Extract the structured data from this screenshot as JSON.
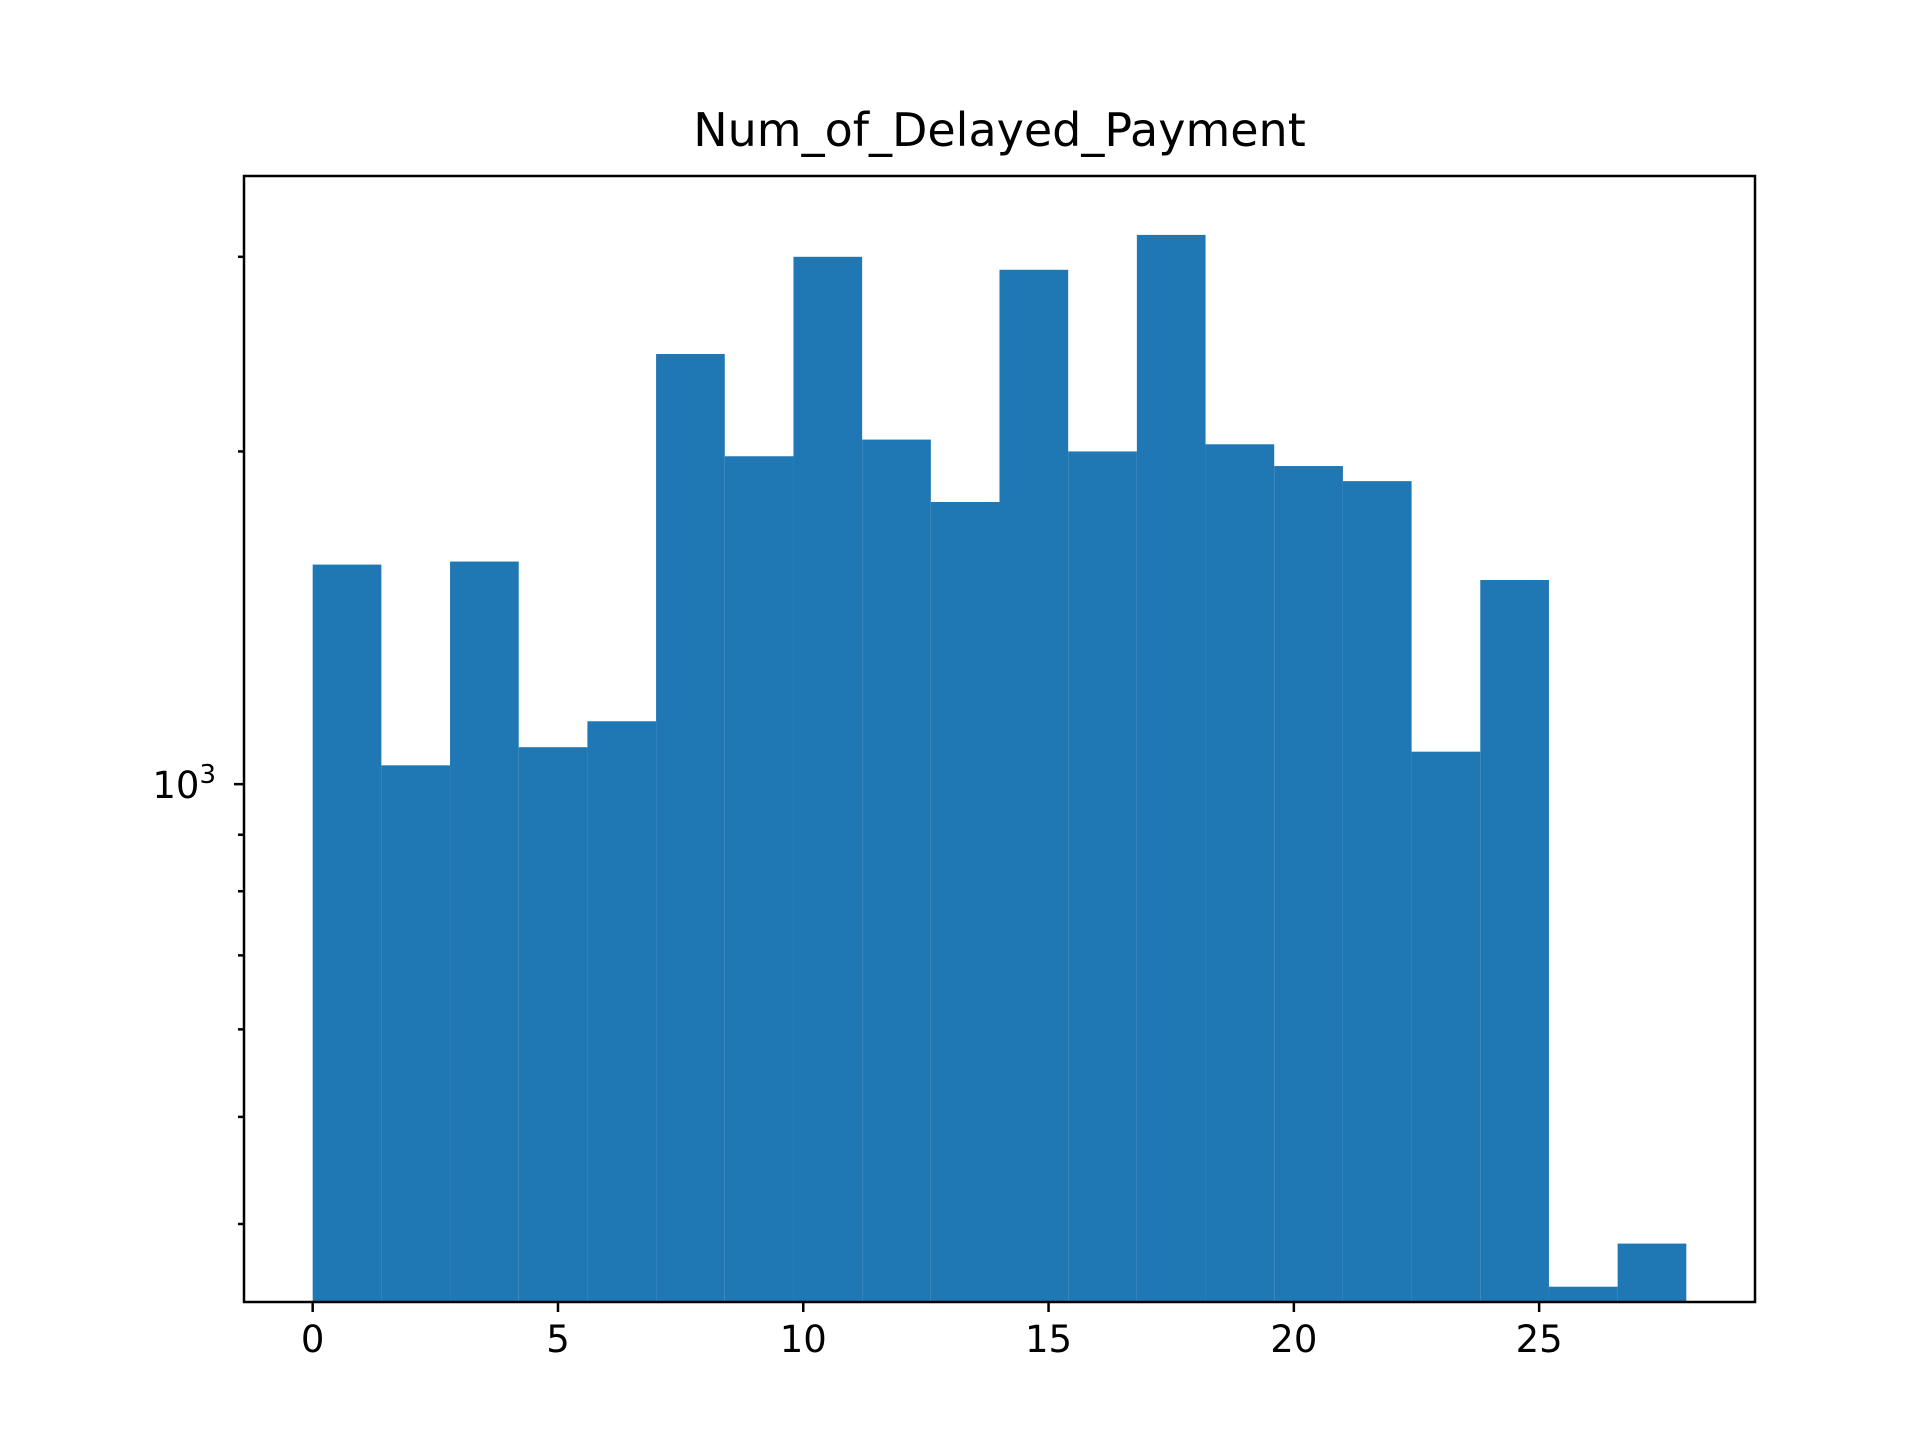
{
  "chart_data": {
    "type": "bar",
    "title": "Num_of_Delayed_Payment",
    "xlabel": "",
    "ylabel": "",
    "y_scale": "log",
    "bin_width": 1.4,
    "bin_edges": [
      0,
      1.4,
      2.8,
      4.2,
      5.6,
      7.0,
      8.4,
      9.8,
      11.2,
      12.6,
      14.0,
      15.4,
      16.8,
      18.2,
      19.6,
      21.0,
      22.4,
      23.8,
      25.2,
      26.6,
      28.0
    ],
    "values": [
      1580,
      1040,
      1590,
      1080,
      1140,
      2450,
      1980,
      3000,
      2050,
      1800,
      2920,
      2000,
      3140,
      2030,
      1940,
      1880,
      1070,
      1530,
      351,
      384
    ],
    "xlim": [
      -1.4,
      29.4
    ],
    "ylim": [
      340,
      3550
    ],
    "x_ticks": [
      0,
      5,
      10,
      15,
      20,
      25
    ],
    "x_tick_labels": [
      "0",
      "5",
      "10",
      "15",
      "20",
      "25"
    ],
    "y_major_ticks": [
      1000
    ],
    "y_tick_labels": [
      {
        "base": "10",
        "exp": "3"
      }
    ],
    "y_minor_ticks": [
      400,
      500,
      600,
      700,
      800,
      900,
      2000,
      3000
    ],
    "grid": false,
    "bar_color": "#1f77b4"
  }
}
